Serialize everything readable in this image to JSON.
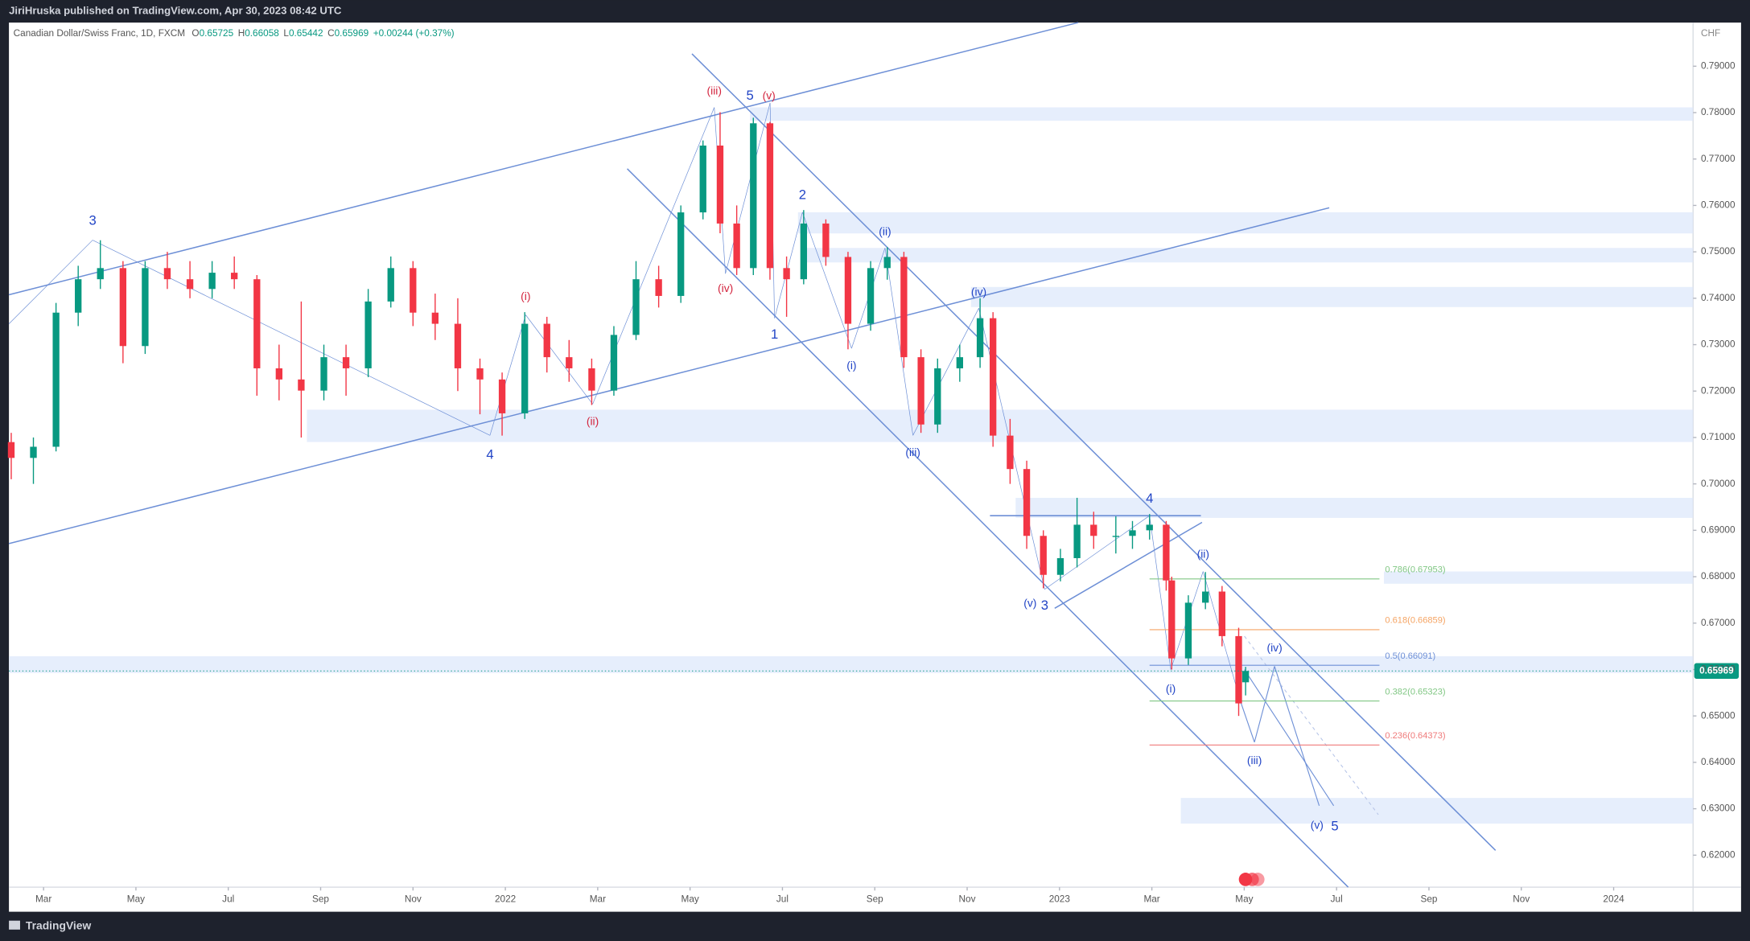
{
  "header": {
    "publisher": "JiriHruska published on TradingView.com, Apr 30, 2023 08:42 UTC",
    "brand": "TradingView"
  },
  "chart_data": {
    "type": "candlestick",
    "symbol": "Canadian Dollar/Swiss Franc, 1D, FXCM",
    "legend_keys": [
      "O",
      "H",
      "L",
      "C"
    ],
    "change": "+0.00244 (+0.37%)",
    "currency": "CHF",
    "up_color": "#089981",
    "down_color": "#f23645",
    "x": [
      1.3,
      1.78,
      2.27,
      2.75,
      3.23,
      3.72,
      4.2,
      4.68,
      5.17,
      5.65,
      6.13,
      6.62,
      7.1,
      7.58,
      8.07,
      8.55,
      9.03,
      9.52,
      10.0,
      10.48,
      10.97,
      11.45,
      11.93,
      12.42,
      12.9,
      13.38,
      13.87,
      14.35,
      14.83,
      15.32,
      15.8,
      16.28,
      16.65,
      17.01,
      17.37,
      17.73,
      18.09,
      18.46,
      18.94,
      19.42,
      19.91,
      20.27,
      20.63,
      21.0,
      21.36,
      21.84,
      22.28,
      22.56,
      22.93,
      23.29,
      23.65,
      24.02,
      24.38,
      24.74,
      25.22,
      25.58,
      25.95,
      26.31,
      26.43,
      26.79,
      27.16,
      27.52,
      27.88,
      28.03
    ],
    "open": [
      0.709,
      0.7056,
      0.708,
      0.7369,
      0.7441,
      0.7465,
      0.7297,
      0.7465,
      0.7441,
      0.742,
      0.7455,
      0.7441,
      0.7249,
      0.7225,
      0.7201,
      0.7273,
      0.7249,
      0.7393,
      0.7465,
      0.7369,
      0.7345,
      0.7249,
      0.7225,
      0.7152,
      0.7345,
      0.7273,
      0.7249,
      0.7201,
      0.7321,
      0.7441,
      0.7405,
      0.7585,
      0.7729,
      0.7561,
      0.7465,
      0.7777,
      0.7465,
      0.7441,
      0.7561,
      0.7489,
      0.7345,
      0.7465,
      0.7489,
      0.7273,
      0.7128,
      0.7249,
      0.7273,
      0.7357,
      0.7104,
      0.7032,
      0.6888,
      0.6804,
      0.684,
      0.6912,
      0.6888,
      0.6888,
      0.69,
      0.6912,
      0.6792,
      0.6624,
      0.6744,
      0.6768,
      0.6672,
      0.65725
    ],
    "high": [
      0.711,
      0.71,
      0.739,
      0.747,
      0.7525,
      0.748,
      0.748,
      0.75,
      0.748,
      0.748,
      0.749,
      0.745,
      0.73,
      0.7393,
      0.73,
      0.73,
      0.742,
      0.749,
      0.748,
      0.741,
      0.74,
      0.727,
      0.724,
      0.737,
      0.736,
      0.731,
      0.727,
      0.734,
      0.748,
      0.747,
      0.76,
      0.774,
      0.7801,
      0.76,
      0.7789,
      0.778,
      0.749,
      0.759,
      0.757,
      0.75,
      0.748,
      0.751,
      0.75,
      0.729,
      0.727,
      0.73,
      0.74,
      0.737,
      0.714,
      0.705,
      0.69,
      0.686,
      0.697,
      0.694,
      0.693,
      0.692,
      0.6935,
      0.692,
      0.68,
      0.676,
      0.681,
      0.678,
      0.669,
      0.66058
    ],
    "low": [
      0.701,
      0.7,
      0.707,
      0.734,
      0.742,
      0.726,
      0.728,
      0.742,
      0.74,
      0.74,
      0.742,
      0.719,
      0.718,
      0.71,
      0.718,
      0.719,
      0.723,
      0.738,
      0.734,
      0.731,
      0.72,
      0.715,
      0.7104,
      0.714,
      0.724,
      0.722,
      0.717,
      0.719,
      0.731,
      0.738,
      0.739,
      0.757,
      0.754,
      0.745,
      0.745,
      0.744,
      0.736,
      0.743,
      0.747,
      0.729,
      0.733,
      0.744,
      0.725,
      0.711,
      0.711,
      0.722,
      0.725,
      0.708,
      0.7,
      0.686,
      0.6775,
      0.679,
      0.682,
      0.686,
      0.685,
      0.686,
      0.688,
      0.677,
      0.66,
      0.661,
      0.673,
      0.665,
      0.65,
      0.65442
    ],
    "close": [
      0.7056,
      0.708,
      0.7369,
      0.7441,
      0.7465,
      0.7297,
      0.7465,
      0.7441,
      0.742,
      0.7455,
      0.7441,
      0.7249,
      0.7225,
      0.7201,
      0.7273,
      0.7249,
      0.7393,
      0.7465,
      0.7369,
      0.7345,
      0.7249,
      0.7225,
      0.7152,
      0.7345,
      0.7273,
      0.7249,
      0.7201,
      0.7321,
      0.7441,
      0.7405,
      0.7585,
      0.7729,
      0.7561,
      0.7465,
      0.7777,
      0.7465,
      0.7441,
      0.7561,
      0.7489,
      0.7345,
      0.7465,
      0.7489,
      0.7273,
      0.7128,
      0.7249,
      0.7273,
      0.7357,
      0.7104,
      0.7032,
      0.6888,
      0.6804,
      0.684,
      0.6912,
      0.6888,
      0.6888,
      0.69,
      0.6912,
      0.6792,
      0.6624,
      0.6744,
      0.6768,
      0.6672,
      0.6527,
      0.65969
    ],
    "xlim": [
      1.25,
      37.72
    ],
    "xticks": [
      {
        "value": 2,
        "label": "Mar"
      },
      {
        "value": 4,
        "label": "May"
      },
      {
        "value": 6,
        "label": "Jul"
      },
      {
        "value": 8,
        "label": "Sep"
      },
      {
        "value": 10,
        "label": "Nov"
      },
      {
        "value": 12,
        "label": "2022"
      },
      {
        "value": 14,
        "label": "Mar"
      },
      {
        "value": 16,
        "label": "May"
      },
      {
        "value": 18,
        "label": "Jul"
      },
      {
        "value": 20,
        "label": "Sep"
      },
      {
        "value": 22,
        "label": "Nov"
      },
      {
        "value": 24,
        "label": "2023"
      },
      {
        "value": 26,
        "label": "Mar"
      },
      {
        "value": 28,
        "label": "May"
      },
      {
        "value": 30,
        "label": "Jul"
      },
      {
        "value": 32,
        "label": "Sep"
      },
      {
        "value": 34,
        "label": "Nov"
      },
      {
        "value": 36,
        "label": "2024"
      }
    ],
    "ylim": [
      0.6131,
      0.7994
    ],
    "yticks": [
      {
        "value": 0.79,
        "label": "0.79000"
      },
      {
        "value": 0.78,
        "label": "0.78000"
      },
      {
        "value": 0.77,
        "label": "0.77000"
      },
      {
        "value": 0.76,
        "label": "0.76000"
      },
      {
        "value": 0.75,
        "label": "0.75000"
      },
      {
        "value": 0.74,
        "label": "0.74000"
      },
      {
        "value": 0.73,
        "label": "0.73000"
      },
      {
        "value": 0.72,
        "label": "0.72000"
      },
      {
        "value": 0.71,
        "label": "0.71000"
      },
      {
        "value": 0.7,
        "label": "0.70000"
      },
      {
        "value": 0.69,
        "label": "0.69000"
      },
      {
        "value": 0.68,
        "label": "0.68000"
      },
      {
        "value": 0.67,
        "label": "0.67000"
      },
      {
        "value": 0.66,
        "label": "0.66000"
      },
      {
        "value": 0.65,
        "label": "0.65000"
      },
      {
        "value": 0.64,
        "label": "0.64000"
      },
      {
        "value": 0.63,
        "label": "0.63000"
      },
      {
        "value": 0.62,
        "label": "0.62000"
      }
    ],
    "fib_levels": [
      {
        "price": 0.67953,
        "label": "0.786(0.67953)",
        "color": "#81c784"
      },
      {
        "price": 0.66859,
        "label": "0.618(0.66859)",
        "color": "#f5a463"
      },
      {
        "price": 0.66091,
        "label": "0.5(0.66091)",
        "color": "#6d8fd6"
      },
      {
        "price": 0.65323,
        "label": "0.382(0.65323)",
        "color": "#81c784"
      },
      {
        "price": 0.64373,
        "label": "0.236(0.64373)",
        "color": "#ef7a7a"
      }
    ],
    "wave_labels": [
      {
        "text": "3",
        "color": "#2144c6"
      },
      {
        "text": "4",
        "color": "#2144c6"
      },
      {
        "text": "(i)",
        "color": "#d3243e"
      },
      {
        "text": "(ii)",
        "color": "#d3243e"
      },
      {
        "text": "(iii)",
        "color": "#d3243e"
      },
      {
        "text": "(iv)",
        "color": "#d3243e"
      },
      {
        "text": "5",
        "color": "#2144c6"
      },
      {
        "text": "(v)",
        "color": "#d3243e"
      },
      {
        "text": "2",
        "color": "#2144c6"
      },
      {
        "text": "1",
        "color": "#2144c6"
      },
      {
        "text": "(ii)",
        "color": "#2144c6"
      },
      {
        "text": "(i)",
        "color": "#2144c6"
      },
      {
        "text": "(iv)",
        "color": "#2144c6"
      },
      {
        "text": "(iii)",
        "color": "#2144c6"
      },
      {
        "text": "(v)",
        "color": "#2144c6"
      },
      {
        "text": "3",
        "color": "#2144c6"
      },
      {
        "text": "4",
        "color": "#2144c6"
      },
      {
        "text": "(ii)",
        "color": "#2144c6"
      },
      {
        "text": "(iv)",
        "color": "#2144c6"
      },
      {
        "text": "(i)",
        "color": "#2144c6"
      },
      {
        "text": "(iii)",
        "color": "#2144c6"
      },
      {
        "text": "(v)",
        "color": "#2144c6"
      },
      {
        "text": "5",
        "color": "#2144c6"
      }
    ]
  }
}
